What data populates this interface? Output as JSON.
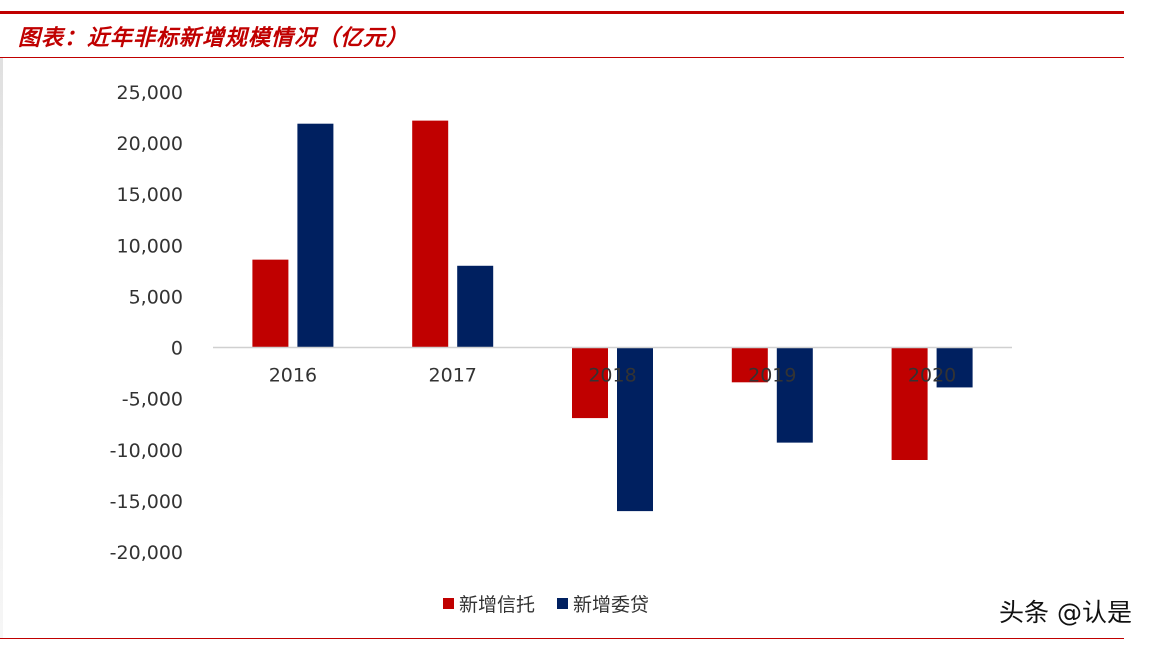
{
  "page": {
    "title": "图表：近年非标新增规模情况（亿元）",
    "watermark": "头条 @认是"
  },
  "colors": {
    "accent": "#c00000",
    "series_trust": "#c00000",
    "series_entrusted": "#002060"
  },
  "chart_data": {
    "type": "bar",
    "title": "图表：近年非标新增规模情况（亿元）",
    "categories": [
      "2016",
      "2017",
      "2018",
      "2019",
      "2020"
    ],
    "series": [
      {
        "name": "新增信托",
        "values": [
          8600,
          22200,
          -6900,
          -3400,
          -11000
        ],
        "color": "#c00000"
      },
      {
        "name": "新增委贷",
        "values": [
          21900,
          8000,
          -16000,
          -9300,
          -3900
        ],
        "color": "#002060"
      }
    ],
    "ylim": [
      -20000,
      25000
    ],
    "yticks": [
      25000,
      20000,
      15000,
      10000,
      5000,
      0,
      -5000,
      -10000,
      -15000,
      -20000
    ],
    "ytick_labels": [
      "25,000",
      "20,000",
      "15,000",
      "10,000",
      "5,000",
      "0",
      "-5,000",
      "-10,000",
      "-15,000",
      "-20,000"
    ],
    "xlabel": "",
    "ylabel": "",
    "grid": false,
    "legend_position": "bottom"
  }
}
